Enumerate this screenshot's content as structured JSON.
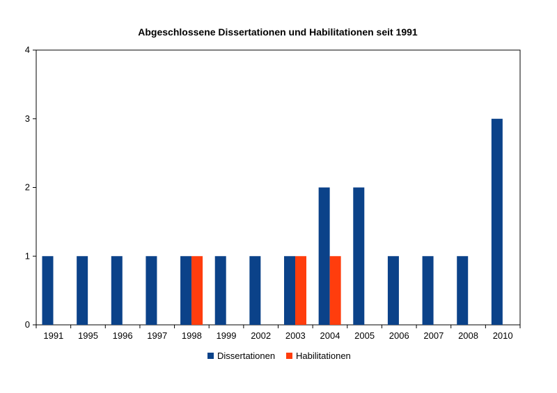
{
  "chart_data": {
    "type": "bar",
    "title": "Abgeschlossene Dissertationen und Habilitationen seit 1991",
    "xlabel": "",
    "ylabel": "",
    "categories": [
      "1991",
      "1995",
      "1996",
      "1997",
      "1998",
      "1999",
      "2002",
      "2003",
      "2004",
      "2005",
      "2006",
      "2007",
      "2008",
      "2010"
    ],
    "series": [
      {
        "name": "Dissertationen",
        "color": "#0b4289",
        "values": [
          1,
          1,
          1,
          1,
          1,
          1,
          1,
          1,
          2,
          2,
          1,
          1,
          1,
          3
        ]
      },
      {
        "name": "Habilitationen",
        "color": "#ff3d0d",
        "values": [
          0,
          0,
          0,
          0,
          1,
          0,
          0,
          1,
          1,
          0,
          0,
          0,
          0,
          0
        ]
      }
    ],
    "ylim": [
      0,
      4
    ],
    "yticks": [
      "0",
      "1",
      "2",
      "3",
      "4"
    ],
    "grid": false,
    "legend_position": "bottom"
  }
}
